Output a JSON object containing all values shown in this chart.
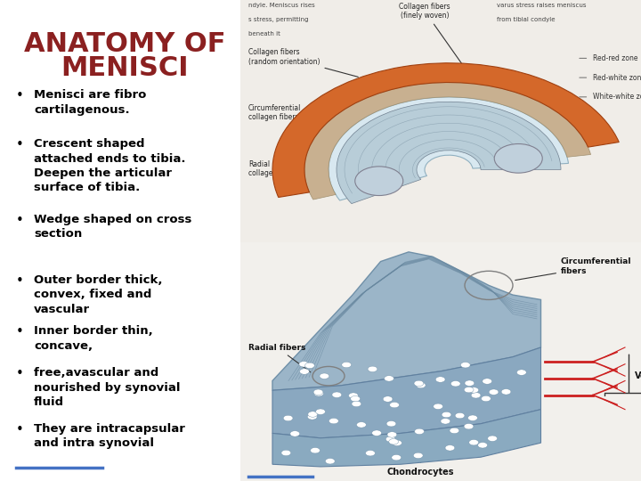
{
  "title_line1": "ANATOMY OF",
  "title_line2": "MENISCI",
  "title_color": "#8B2020",
  "title_fontsize": 22,
  "title_fontweight": "bold",
  "bullet_color": "#000000",
  "bullet_fontsize": 9.5,
  "background_color": "#FFFFFF",
  "bullets": [
    "Menisci are fibro\ncartilagenous.",
    "Crescent shaped\nattached ends to tibia.\nDeepen the articular\nsurface of tibia.",
    "Wedge shaped on cross\nsection",
    "Outer border thick,\nconvex, fixed and\nvascular",
    "Inner border thin,\nconcave,",
    "free,avascular and\nnourished by synovial\nfluid",
    "They are intracapsular\nand intra synovial"
  ],
  "divider_line_color": "#4472C4",
  "top_img_bg": "#f0ede8",
  "bot_img_bg": "#f0ede8",
  "meniscus_orange": "#D4682A",
  "meniscus_grey": "#B8CDD8",
  "meniscus_light": "#D8E8F0",
  "wedge_blue": "#9BB5C8",
  "wedge_dark": "#7090A8",
  "chondro_blue": "#8AA8C0"
}
